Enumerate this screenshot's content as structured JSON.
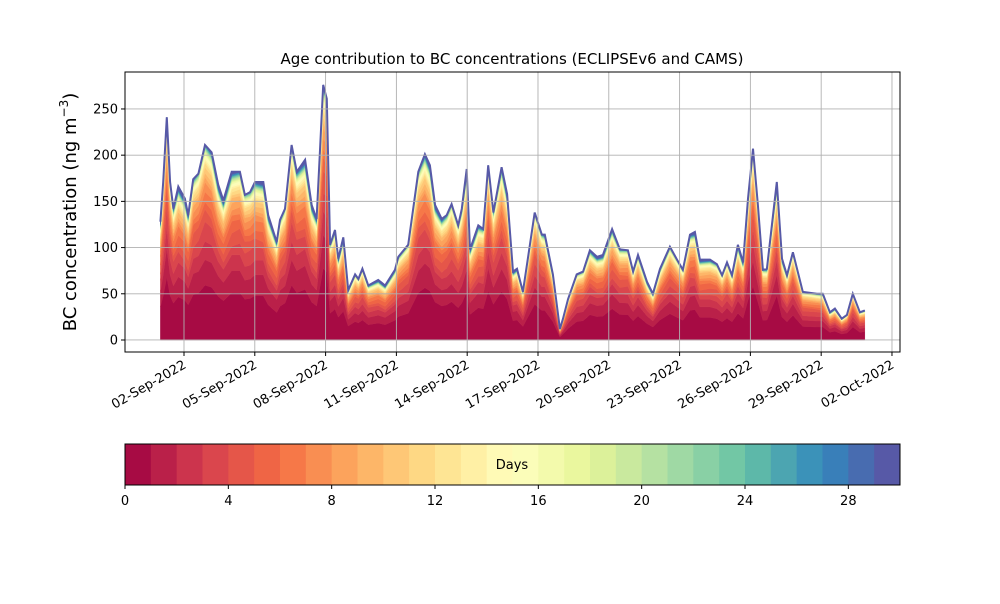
{
  "chart_data": {
    "type": "area",
    "stacked": true,
    "title": "Age contribution to BC concentrations (ECLIPSEv6 and CAMS)",
    "ylabel": "BC concentration (ng m",
    "ylabel_sup": "−3",
    "ylabel_close": ")",
    "xlabel": "",
    "ylim": [
      -13,
      290
    ],
    "yticks": [
      0,
      50,
      100,
      150,
      200,
      250
    ],
    "x_units": "days since 01-Sep-2022 00:00",
    "xlim": [
      -1.5,
      31.34
    ],
    "xticks": [
      {
        "day": 1,
        "label": "02-Sep-2022"
      },
      {
        "day": 4,
        "label": "05-Sep-2022"
      },
      {
        "day": 7,
        "label": "08-Sep-2022"
      },
      {
        "day": 10,
        "label": "11-Sep-2022"
      },
      {
        "day": 13,
        "label": "14-Sep-2022"
      },
      {
        "day": 16,
        "label": "17-Sep-2022"
      },
      {
        "day": 19,
        "label": "20-Sep-2022"
      },
      {
        "day": 22,
        "label": "23-Sep-2022"
      },
      {
        "day": 25,
        "label": "26-Sep-2022"
      },
      {
        "day": 28,
        "label": "29-Sep-2022"
      },
      {
        "day": 31,
        "label": "02-Oct-2022"
      }
    ],
    "grid": true,
    "total": [
      [
        0.0,
        128
      ],
      [
        0.12,
        171
      ],
      [
        0.27,
        241
      ],
      [
        0.41,
        171
      ],
      [
        0.55,
        142
      ],
      [
        0.76,
        166
      ],
      [
        1.04,
        153
      ],
      [
        1.18,
        135
      ],
      [
        1.39,
        174
      ],
      [
        1.61,
        180
      ],
      [
        1.89,
        211
      ],
      [
        2.17,
        203
      ],
      [
        2.45,
        168
      ],
      [
        2.67,
        151
      ],
      [
        3.02,
        182
      ],
      [
        3.37,
        182
      ],
      [
        3.58,
        157
      ],
      [
        3.8,
        160
      ],
      [
        4.01,
        171
      ],
      [
        4.36,
        171
      ],
      [
        4.57,
        135
      ],
      [
        4.93,
        106
      ],
      [
        5.07,
        130
      ],
      [
        5.28,
        142
      ],
      [
        5.56,
        211
      ],
      [
        5.78,
        182
      ],
      [
        6.13,
        195
      ],
      [
        6.41,
        146
      ],
      [
        6.62,
        131
      ],
      [
        6.9,
        276
      ],
      [
        7.05,
        261
      ],
      [
        7.19,
        103
      ],
      [
        7.4,
        119
      ],
      [
        7.54,
        88
      ],
      [
        7.75,
        111
      ],
      [
        7.96,
        54
      ],
      [
        8.25,
        71
      ],
      [
        8.39,
        66
      ],
      [
        8.56,
        77
      ],
      [
        8.81,
        59
      ],
      [
        9.23,
        65
      ],
      [
        9.52,
        59
      ],
      [
        9.94,
        76
      ],
      [
        10.08,
        90
      ],
      [
        10.5,
        103
      ],
      [
        10.93,
        182
      ],
      [
        11.21,
        201
      ],
      [
        11.42,
        189
      ],
      [
        11.64,
        146
      ],
      [
        11.92,
        131
      ],
      [
        12.13,
        135
      ],
      [
        12.34,
        147
      ],
      [
        12.62,
        124
      ],
      [
        12.77,
        142
      ],
      [
        12.98,
        185
      ],
      [
        13.12,
        98
      ],
      [
        13.47,
        124
      ],
      [
        13.68,
        120
      ],
      [
        13.89,
        189
      ],
      [
        14.11,
        138
      ],
      [
        14.46,
        187
      ],
      [
        14.69,
        158
      ],
      [
        14.94,
        74
      ],
      [
        15.11,
        77
      ],
      [
        15.36,
        52
      ],
      [
        15.86,
        138
      ],
      [
        16.16,
        114
      ],
      [
        16.29,
        114
      ],
      [
        16.63,
        71
      ],
      [
        16.93,
        12
      ],
      [
        17.06,
        23
      ],
      [
        17.27,
        44
      ],
      [
        17.64,
        71
      ],
      [
        17.91,
        74
      ],
      [
        18.2,
        97
      ],
      [
        18.5,
        90
      ],
      [
        18.75,
        92
      ],
      [
        19.14,
        120
      ],
      [
        19.47,
        98
      ],
      [
        19.81,
        97
      ],
      [
        20.03,
        74
      ],
      [
        20.24,
        92
      ],
      [
        20.62,
        63
      ],
      [
        20.87,
        50
      ],
      [
        21.17,
        77
      ],
      [
        21.59,
        101
      ],
      [
        21.89,
        87
      ],
      [
        22.14,
        76
      ],
      [
        22.44,
        114
      ],
      [
        22.65,
        117
      ],
      [
        22.86,
        87
      ],
      [
        23.29,
        87
      ],
      [
        23.58,
        82
      ],
      [
        23.8,
        70
      ],
      [
        24.01,
        84
      ],
      [
        24.22,
        70
      ],
      [
        24.47,
        103
      ],
      [
        24.69,
        84
      ],
      [
        24.9,
        153
      ],
      [
        25.11,
        207
      ],
      [
        25.32,
        146
      ],
      [
        25.53,
        76
      ],
      [
        25.7,
        77
      ],
      [
        26.12,
        171
      ],
      [
        26.34,
        88
      ],
      [
        26.55,
        70
      ],
      [
        26.8,
        95
      ],
      [
        27.22,
        52
      ],
      [
        27.82,
        50
      ],
      [
        28.07,
        50
      ],
      [
        28.37,
        30
      ],
      [
        28.58,
        34
      ],
      [
        28.87,
        23
      ],
      [
        29.09,
        27
      ],
      [
        29.34,
        50
      ],
      [
        29.64,
        30
      ],
      [
        29.85,
        32
      ]
    ],
    "age_bin_shares": [
      0.3,
      0.14,
      0.1,
      0.08,
      0.07,
      0.06,
      0.05,
      0.04,
      0.035,
      0.03,
      0.025,
      0.02,
      0.016,
      0.013,
      0.011,
      0.009,
      0.008,
      0.007,
      0.006,
      0.005,
      0.005,
      0.004,
      0.004,
      0.004,
      0.004,
      0.004,
      0.004,
      0.004,
      0.004,
      0.006
    ],
    "colorbar": {
      "label": "Days",
      "range": [
        0,
        30
      ],
      "n_bins": 30,
      "ticks": [
        0,
        4,
        8,
        12,
        16,
        20,
        24,
        28
      ],
      "colormap_anchors": [
        "#9e0142",
        "#d53e4f",
        "#f46d43",
        "#fdae61",
        "#fee08b",
        "#ffffbf",
        "#e6f598",
        "#abdda4",
        "#66c2a5",
        "#3288bd",
        "#5e4fa2"
      ]
    }
  }
}
